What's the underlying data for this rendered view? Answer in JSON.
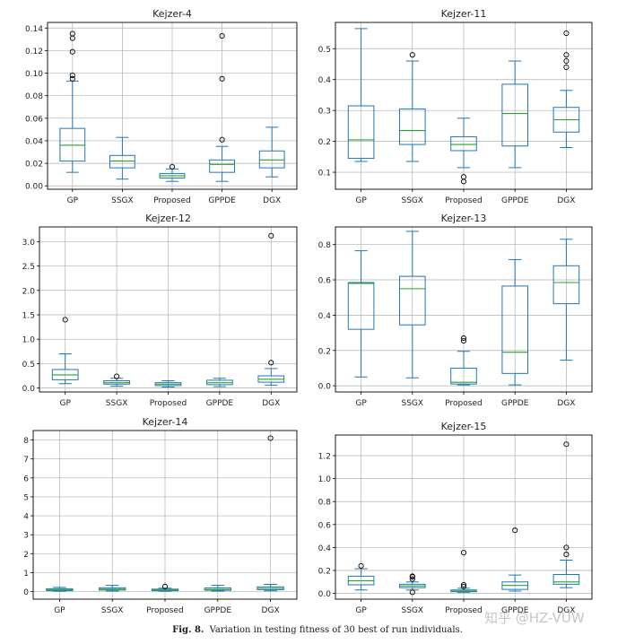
{
  "figure": {
    "label": "Fig. 8.",
    "caption": "Variation in testing fitness of 30 best of run individuals.",
    "watermark": "知乎 @HZ-VUW"
  },
  "colors": {
    "box": "#1f77b4",
    "median": "#2ca02c",
    "grid": "#b0b0b0",
    "outlier": "#000000"
  },
  "chart_data": [
    {
      "type": "box",
      "title": "Kejzer-4",
      "categories": [
        "GP",
        "SSGX",
        "Proposed",
        "GPPDE",
        "DGX"
      ],
      "ylim": [
        -0.003,
        0.145
      ],
      "yticks": [
        0.0,
        0.02,
        0.04,
        0.06,
        0.08,
        0.1,
        0.12,
        0.14
      ],
      "ytick_labels": [
        "0.00",
        "0.02",
        "0.04",
        "0.06",
        "0.08",
        "0.10",
        "0.12",
        "0.14"
      ],
      "series": [
        {
          "name": "GP",
          "whisker_low": 0.012,
          "q1": 0.022,
          "median": 0.036,
          "q3": 0.051,
          "whisker_high": 0.093,
          "outliers": [
            0.095,
            0.098,
            0.119,
            0.131,
            0.135
          ]
        },
        {
          "name": "SSGX",
          "whisker_low": 0.006,
          "q1": 0.016,
          "median": 0.022,
          "q3": 0.027,
          "whisker_high": 0.043,
          "outliers": []
        },
        {
          "name": "Proposed",
          "whisker_low": 0.004,
          "q1": 0.007,
          "median": 0.009,
          "q3": 0.011,
          "whisker_high": 0.015,
          "outliers": [
            0.017
          ]
        },
        {
          "name": "GPPDE",
          "whisker_low": 0.004,
          "q1": 0.012,
          "median": 0.019,
          "q3": 0.023,
          "whisker_high": 0.035,
          "outliers": [
            0.041,
            0.095,
            0.133
          ]
        },
        {
          "name": "DGX",
          "whisker_low": 0.008,
          "q1": 0.016,
          "median": 0.023,
          "q3": 0.031,
          "whisker_high": 0.052,
          "outliers": []
        }
      ]
    },
    {
      "type": "box",
      "title": "Kejzer-11",
      "categories": [
        "GP",
        "SSGX",
        "Proposed",
        "GPPDE",
        "DGX"
      ],
      "ylim": [
        0.045,
        0.585
      ],
      "yticks": [
        0.1,
        0.2,
        0.3,
        0.4,
        0.5
      ],
      "ytick_labels": [
        "0.1",
        "0.2",
        "0.3",
        "0.4",
        "0.5"
      ],
      "series": [
        {
          "name": "GP",
          "whisker_low": 0.135,
          "q1": 0.145,
          "median": 0.205,
          "q3": 0.315,
          "whisker_high": 0.565,
          "outliers": []
        },
        {
          "name": "SSGX",
          "whisker_low": 0.135,
          "q1": 0.19,
          "median": 0.235,
          "q3": 0.305,
          "whisker_high": 0.46,
          "outliers": [
            0.48
          ]
        },
        {
          "name": "Proposed",
          "whisker_low": 0.115,
          "q1": 0.17,
          "median": 0.19,
          "q3": 0.215,
          "whisker_high": 0.275,
          "outliers": [
            0.07,
            0.085
          ]
        },
        {
          "name": "GPPDE",
          "whisker_low": 0.115,
          "q1": 0.185,
          "median": 0.29,
          "q3": 0.385,
          "whisker_high": 0.46,
          "outliers": []
        },
        {
          "name": "DGX",
          "whisker_low": 0.18,
          "q1": 0.23,
          "median": 0.27,
          "q3": 0.31,
          "whisker_high": 0.365,
          "outliers": [
            0.44,
            0.46,
            0.48,
            0.55
          ]
        }
      ]
    },
    {
      "type": "box",
      "title": "Kejzer-12",
      "categories": [
        "GP",
        "SSGX",
        "Proposed",
        "GPPDE",
        "DGX"
      ],
      "ylim": [
        -0.08,
        3.3
      ],
      "yticks": [
        0.0,
        0.5,
        1.0,
        1.5,
        2.0,
        2.5,
        3.0
      ],
      "ytick_labels": [
        "0.0",
        "0.5",
        "1.0",
        "1.5",
        "2.0",
        "2.5",
        "3.0"
      ],
      "series": [
        {
          "name": "GP",
          "whisker_low": 0.09,
          "q1": 0.17,
          "median": 0.27,
          "q3": 0.38,
          "whisker_high": 0.7,
          "outliers": [
            1.4
          ]
        },
        {
          "name": "SSGX",
          "whisker_low": 0.04,
          "q1": 0.08,
          "median": 0.11,
          "q3": 0.15,
          "whisker_high": 0.2,
          "outliers": [
            0.24
          ]
        },
        {
          "name": "Proposed",
          "whisker_low": 0.02,
          "q1": 0.05,
          "median": 0.08,
          "q3": 0.11,
          "whisker_high": 0.15,
          "outliers": []
        },
        {
          "name": "GPPDE",
          "whisker_low": 0.03,
          "q1": 0.07,
          "median": 0.11,
          "q3": 0.16,
          "whisker_high": 0.2,
          "outliers": []
        },
        {
          "name": "DGX",
          "whisker_low": 0.06,
          "q1": 0.12,
          "median": 0.18,
          "q3": 0.25,
          "whisker_high": 0.4,
          "outliers": [
            0.52,
            3.12
          ]
        }
      ]
    },
    {
      "type": "box",
      "title": "Kejzer-13",
      "categories": [
        "GP",
        "SSGX",
        "Proposed",
        "GPPDE",
        "DGX"
      ],
      "ylim": [
        -0.035,
        0.9
      ],
      "yticks": [
        0.0,
        0.2,
        0.4,
        0.6,
        0.8
      ],
      "ytick_labels": [
        "0.0",
        "0.2",
        "0.4",
        "0.6",
        "0.8"
      ],
      "series": [
        {
          "name": "GP",
          "whisker_low": 0.05,
          "q1": 0.32,
          "median": 0.58,
          "q3": 0.585,
          "whisker_high": 0.765,
          "outliers": []
        },
        {
          "name": "SSGX",
          "whisker_low": 0.045,
          "q1": 0.345,
          "median": 0.55,
          "q3": 0.62,
          "whisker_high": 0.875,
          "outliers": []
        },
        {
          "name": "Proposed",
          "whisker_low": 0.005,
          "q1": 0.01,
          "median": 0.02,
          "q3": 0.1,
          "whisker_high": 0.195,
          "outliers": [
            0.255,
            0.27
          ]
        },
        {
          "name": "GPPDE",
          "whisker_low": 0.005,
          "q1": 0.07,
          "median": 0.19,
          "q3": 0.565,
          "whisker_high": 0.715,
          "outliers": []
        },
        {
          "name": "DGX",
          "whisker_low": 0.145,
          "q1": 0.465,
          "median": 0.585,
          "q3": 0.68,
          "whisker_high": 0.83,
          "outliers": []
        }
      ]
    },
    {
      "type": "box",
      "title": "Kejzer-14",
      "categories": [
        "GP",
        "SSGX",
        "Proposed",
        "GPPDE",
        "DGX"
      ],
      "ylim": [
        -0.4,
        8.5
      ],
      "yticks": [
        0,
        1,
        2,
        3,
        4,
        5,
        6,
        7,
        8
      ],
      "ytick_labels": [
        "0",
        "1",
        "2",
        "3",
        "4",
        "5",
        "6",
        "7",
        "8"
      ],
      "series": [
        {
          "name": "GP",
          "whisker_low": 0.02,
          "q1": 0.05,
          "median": 0.09,
          "q3": 0.15,
          "whisker_high": 0.22,
          "outliers": []
        },
        {
          "name": "SSGX",
          "whisker_low": 0.03,
          "q1": 0.08,
          "median": 0.13,
          "q3": 0.2,
          "whisker_high": 0.33,
          "outliers": []
        },
        {
          "name": "Proposed",
          "whisker_low": 0.02,
          "q1": 0.05,
          "median": 0.08,
          "q3": 0.13,
          "whisker_high": 0.18,
          "outliers": [
            0.27
          ]
        },
        {
          "name": "GPPDE",
          "whisker_low": 0.03,
          "q1": 0.07,
          "median": 0.11,
          "q3": 0.19,
          "whisker_high": 0.33,
          "outliers": []
        },
        {
          "name": "DGX",
          "whisker_low": 0.04,
          "q1": 0.1,
          "median": 0.17,
          "q3": 0.25,
          "whisker_high": 0.38,
          "outliers": [
            8.1
          ]
        }
      ]
    },
    {
      "type": "box",
      "title": "Kejzer-15",
      "categories": [
        "GP",
        "SSGX",
        "Proposed",
        "GPPDE",
        "DGX"
      ],
      "ylim": [
        -0.05,
        1.38
      ],
      "yticks": [
        0.0,
        0.2,
        0.4,
        0.6,
        0.8,
        1.0,
        1.2
      ],
      "ytick_labels": [
        "0.0",
        "0.2",
        "0.4",
        "0.6",
        "0.8",
        "1.0",
        "1.2"
      ],
      "series": [
        {
          "name": "GP",
          "whisker_low": 0.03,
          "q1": 0.075,
          "median": 0.11,
          "q3": 0.15,
          "whisker_high": 0.215,
          "outliers": [
            0.24
          ]
        },
        {
          "name": "SSGX",
          "whisker_low": 0.03,
          "q1": 0.05,
          "median": 0.065,
          "q3": 0.08,
          "whisker_high": 0.1,
          "outliers": [
            0.01,
            0.125,
            0.145,
            0.15
          ]
        },
        {
          "name": "Proposed",
          "whisker_low": 0.01,
          "q1": 0.015,
          "median": 0.02,
          "q3": 0.03,
          "whisker_high": 0.045,
          "outliers": [
            0.06,
            0.075,
            0.355
          ]
        },
        {
          "name": "GPPDE",
          "whisker_low": 0.02,
          "q1": 0.035,
          "median": 0.07,
          "q3": 0.1,
          "whisker_high": 0.16,
          "outliers": [
            0.55
          ]
        },
        {
          "name": "DGX",
          "whisker_low": 0.05,
          "q1": 0.08,
          "median": 0.1,
          "q3": 0.165,
          "whisker_high": 0.29,
          "outliers": [
            0.34,
            0.4,
            1.3
          ]
        }
      ]
    }
  ]
}
